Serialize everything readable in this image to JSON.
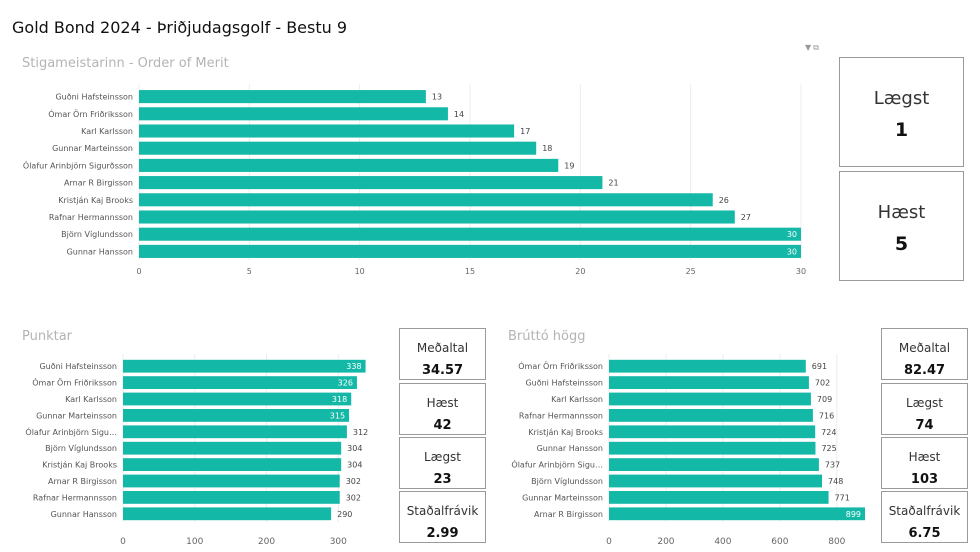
{
  "page_title": "Gold Bond 2024 - Þriðjudagsgolf - Bestu 9",
  "colors": {
    "bar": "#14b8a6",
    "grid": "#ececec",
    "label": "#555555"
  },
  "icons": [
    "filter-icon",
    "focus-mode-icon"
  ],
  "cards": {
    "order": [
      {
        "label": "Lægst",
        "value": "1"
      },
      {
        "label": "Hæst",
        "value": "5"
      }
    ],
    "punktar": [
      {
        "label": "Meðaltal",
        "value": "34.57"
      },
      {
        "label": "Hæst",
        "value": "42"
      },
      {
        "label": "Lægst",
        "value": "23"
      },
      {
        "label": "Staðalfrávik",
        "value": "2.99"
      }
    ],
    "brutto": [
      {
        "label": "Meðaltal",
        "value": "82.47"
      },
      {
        "label": "Lægst",
        "value": "74"
      },
      {
        "label": "Hæst",
        "value": "103"
      },
      {
        "label": "Staðalfrávik",
        "value": "6.75"
      }
    ]
  },
  "chart_data": [
    {
      "type": "bar",
      "orientation": "horizontal",
      "title": "Stigameistarinn - Order of Merit",
      "categories": [
        "Guðni Hafsteinsson",
        "Ómar Örn Friðriksson",
        "Karl Karlsson",
        "Gunnar Marteinsson",
        "Ólafur Arinbjörn Sigurðsson",
        "Arnar R Birgisson",
        "Kristján Kaj Brooks",
        "Rafnar Hermannsson",
        "Björn Víglundsson",
        "Gunnar Hansson"
      ],
      "values": [
        13,
        14,
        17,
        18,
        19,
        21,
        26,
        27,
        30,
        30
      ],
      "xlim": [
        0,
        30
      ],
      "xticks": [
        0,
        5,
        10,
        15,
        20,
        25,
        30
      ],
      "grid": true
    },
    {
      "type": "bar",
      "orientation": "horizontal",
      "title": "Punktar",
      "categories": [
        "Guðni Hafsteinsson",
        "Ómar Örn Friðriksson",
        "Karl Karlsson",
        "Gunnar Marteinsson",
        "Ólafur Arinbjörn Sigu…",
        "Björn Víglundsson",
        "Kristján Kaj Brooks",
        "Arnar R Birgisson",
        "Rafnar Hermannsson",
        "Gunnar Hansson"
      ],
      "values": [
        338,
        326,
        318,
        315,
        312,
        304,
        304,
        302,
        302,
        290
      ],
      "xlim": [
        0,
        340
      ],
      "xticks": [
        0,
        100,
        200,
        300
      ],
      "grid": true
    },
    {
      "type": "bar",
      "orientation": "horizontal",
      "title": "Brúttó högg",
      "categories": [
        "Ómar Örn Friðriksson",
        "Guðni Hafsteinsson",
        "Karl Karlsson",
        "Rafnar Hermannsson",
        "Kristján Kaj Brooks",
        "Gunnar Hansson",
        "Ólafur Arinbjörn Sigu…",
        "Björn Víglundsson",
        "Gunnar Marteinsson",
        "Arnar R Birgisson"
      ],
      "values": [
        691,
        702,
        709,
        716,
        724,
        725,
        737,
        748,
        771,
        899
      ],
      "xlim": [
        0,
        920
      ],
      "xticks": [
        0,
        200,
        400,
        600,
        800
      ],
      "grid": true
    }
  ]
}
